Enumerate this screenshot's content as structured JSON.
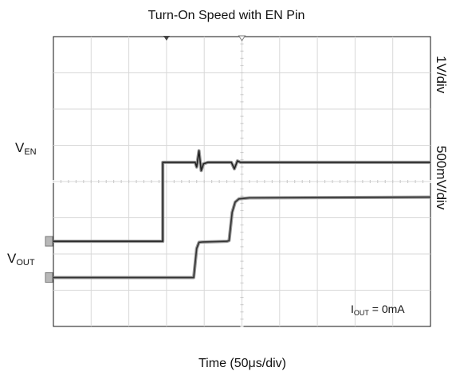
{
  "chart_data": {
    "type": "line",
    "title": "Turn-On Speed with EN Pin",
    "xlabel": "Time (50μs/div)",
    "xlim": [
      0,
      500
    ],
    "x_divisions": 10,
    "y_divisions": 8,
    "grid": true,
    "annotation": {
      "main": "I",
      "sub": "OUT",
      "tail": " = 0mA"
    },
    "series": [
      {
        "label_main": "V",
        "label_sub": "EN",
        "scale": "1V/div",
        "color": "#222222",
        "zero_div": 2.35,
        "points": [
          [
            0,
            0
          ],
          [
            145,
            0
          ],
          [
            145,
            2.18
          ],
          [
            188,
            2.18
          ],
          [
            190,
            2.05
          ],
          [
            193,
            2.5
          ],
          [
            196,
            1.95
          ],
          [
            199,
            2.14
          ],
          [
            205,
            2.18
          ],
          [
            236,
            2.18
          ],
          [
            240,
            2.0
          ],
          [
            244,
            2.22
          ],
          [
            248,
            2.18
          ],
          [
            500,
            2.18
          ]
        ]
      },
      {
        "label_main": "V",
        "label_sub": "OUT",
        "scale": "500mV/div",
        "color": "#333333",
        "zero_div": 1.35,
        "points": [
          [
            0,
            0
          ],
          [
            186,
            0
          ],
          [
            190,
            0.8
          ],
          [
            193,
            0.97
          ],
          [
            197,
            0.98
          ],
          [
            230,
            1.0
          ],
          [
            233,
            1.02
          ],
          [
            237,
            1.8
          ],
          [
            241,
            2.08
          ],
          [
            246,
            2.17
          ],
          [
            260,
            2.2
          ],
          [
            500,
            2.22
          ]
        ]
      }
    ]
  }
}
